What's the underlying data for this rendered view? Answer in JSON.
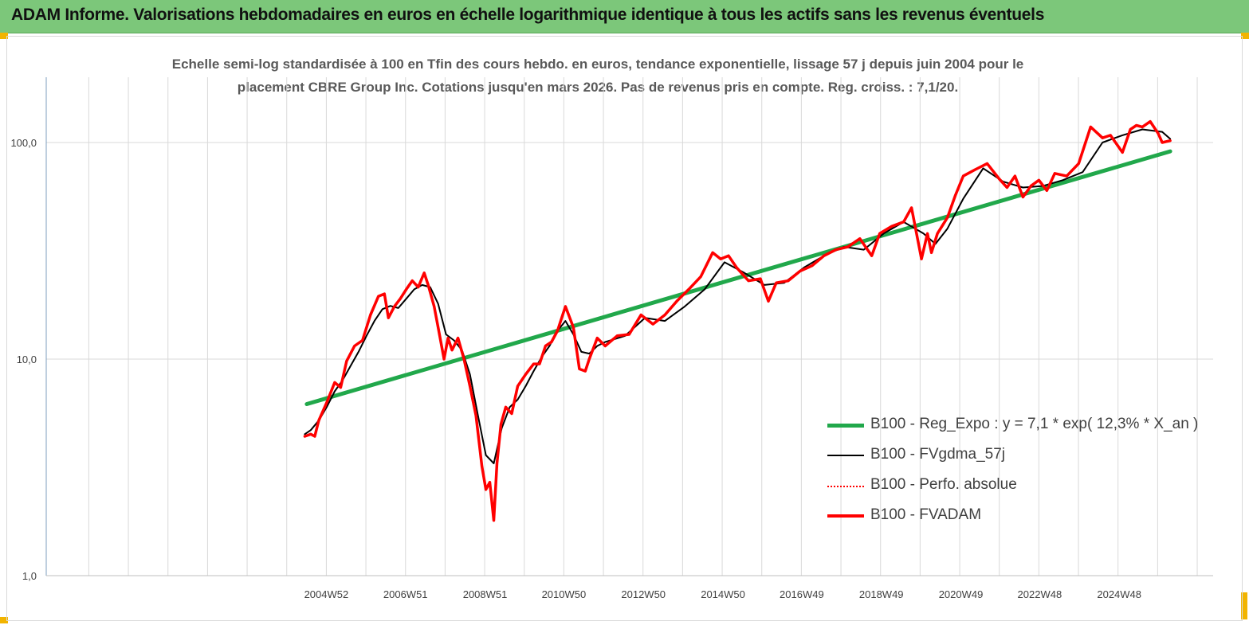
{
  "banner": {
    "title": "ADAM Informe. Valorisations hebdomadaires en euros en échelle logarithmique identique à tous les actifs sans les revenus éventuels"
  },
  "chart_data": {
    "type": "line",
    "title_line1": "Echelle semi-log standardisée à 100 en Tfin des cours hebdo. en euros, tendance exponentielle, lissage 57 j depuis juin 2004 pour le",
    "title_line2": "placement CBRE Group Inc. Cotations jusqu'en mars 2026. Pas de revenus pris en compte. Reg. croiss. : 7,1/20.",
    "y_scale": "log",
    "ylim": [
      1,
      200
    ],
    "y_ticks": [
      1,
      10,
      100
    ],
    "y_tick_labels": [
      "1,0",
      "10,0",
      "100,0"
    ],
    "x_tick_labels": [
      "2004W52",
      "2006W51",
      "2008W51",
      "2010W50",
      "2012W50",
      "2014W50",
      "2016W49",
      "2018W49",
      "2020W49",
      "2022W48",
      "2024W48"
    ],
    "x_tick_years": [
      2004.99,
      2006.98,
      2008.98,
      2010.96,
      2012.96,
      2014.96,
      2016.94,
      2018.94,
      2020.94,
      2022.92,
      2024.92
    ],
    "xlim": [
      1997.95,
      2027.28
    ],
    "grid": true,
    "legend_position": "bottom-right",
    "series": [
      {
        "name": "B100 - Reg_Expo : y = 7,1 * exp( 12,3% *  X_an )",
        "color": "#21a84b",
        "x": [
          2004.5,
          2026.2
        ],
        "y": [
          6.2,
          91
        ]
      },
      {
        "name": "B100 - FVgdma_57j",
        "color": "#000000",
        "x": [
          2004.45,
          2004.6,
          2004.8,
          2005.0,
          2005.2,
          2005.4,
          2005.6,
          2005.8,
          2006.0,
          2006.2,
          2006.4,
          2006.6,
          2006.8,
          2007.0,
          2007.2,
          2007.4,
          2007.6,
          2007.8,
          2008.0,
          2008.2,
          2008.4,
          2008.6,
          2008.8,
          2009.0,
          2009.2,
          2009.4,
          2009.6,
          2009.8,
          2010.0,
          2010.2,
          2010.4,
          2010.6,
          2010.8,
          2011.0,
          2011.2,
          2011.4,
          2011.6,
          2011.8,
          2012.0,
          2012.5,
          2013.0,
          2013.5,
          2014.0,
          2014.5,
          2015.0,
          2015.5,
          2016.0,
          2016.5,
          2017.0,
          2017.5,
          2018.0,
          2018.5,
          2019.0,
          2019.5,
          2020.0,
          2020.3,
          2020.6,
          2021.0,
          2021.5,
          2022.0,
          2022.5,
          2023.0,
          2023.5,
          2024.0,
          2024.5,
          2025.0,
          2025.5,
          2026.0,
          2026.2
        ],
        "y": [
          4.5,
          4.7,
          5.2,
          6.0,
          7.1,
          8.0,
          9.3,
          10.8,
          12.8,
          15.0,
          17.0,
          17.6,
          17.2,
          19.0,
          21.0,
          22.0,
          21.5,
          18.0,
          13.0,
          12.2,
          11.0,
          8.5,
          5.5,
          3.6,
          3.3,
          4.8,
          6.0,
          6.5,
          7.5,
          8.8,
          10.2,
          11.5,
          13.5,
          15.0,
          13.0,
          10.8,
          10.6,
          11.5,
          12.0,
          12.8,
          15.5,
          15.0,
          17.5,
          21.0,
          28.0,
          25.0,
          22.0,
          22.5,
          26.5,
          30.0,
          33.0,
          32.0,
          38.0,
          43.0,
          38.0,
          34.0,
          40.0,
          55.0,
          76.0,
          66.0,
          62.0,
          63.0,
          67.0,
          73.0,
          100.0,
          108.0,
          115.0,
          112.0,
          104.0
        ]
      },
      {
        "name": "B100 - Perfo. absolue",
        "color": "#ff0000",
        "x": [],
        "y": []
      },
      {
        "name": "B100 - FVADAM",
        "color": "#ff0000",
        "x": [
          2004.45,
          2004.6,
          2004.7,
          2004.8,
          2005.0,
          2005.2,
          2005.35,
          2005.5,
          2005.7,
          2005.9,
          2006.1,
          2006.3,
          2006.45,
          2006.55,
          2006.7,
          2006.85,
          2007.0,
          2007.15,
          2007.3,
          2007.45,
          2007.55,
          2007.7,
          2007.8,
          2007.95,
          2008.05,
          2008.15,
          2008.3,
          2008.45,
          2008.6,
          2008.75,
          2008.9,
          2009.0,
          2009.1,
          2009.2,
          2009.28,
          2009.38,
          2009.5,
          2009.65,
          2009.8,
          2010.0,
          2010.2,
          2010.35,
          2010.5,
          2010.65,
          2010.8,
          2011.0,
          2011.2,
          2011.35,
          2011.5,
          2011.6,
          2011.8,
          2012.0,
          2012.3,
          2012.6,
          2012.9,
          2013.2,
          2013.5,
          2013.8,
          2014.1,
          2014.4,
          2014.7,
          2014.9,
          2015.1,
          2015.3,
          2015.6,
          2015.9,
          2016.1,
          2016.3,
          2016.6,
          2016.9,
          2017.2,
          2017.5,
          2017.8,
          2018.1,
          2018.4,
          2018.7,
          2018.9,
          2019.2,
          2019.5,
          2019.7,
          2019.95,
          2020.1,
          2020.2,
          2020.35,
          2020.6,
          2020.8,
          2021.0,
          2021.3,
          2021.6,
          2021.9,
          2022.1,
          2022.3,
          2022.5,
          2022.7,
          2022.9,
          2023.1,
          2023.3,
          2023.6,
          2023.9,
          2024.2,
          2024.5,
          2024.7,
          2025.0,
          2025.2,
          2025.35,
          2025.5,
          2025.7,
          2025.9,
          2026.0,
          2026.2
        ],
        "y": [
          4.4,
          4.5,
          4.4,
          5.2,
          6.3,
          7.8,
          7.4,
          9.8,
          11.5,
          12.2,
          16.0,
          19.5,
          20.0,
          15.5,
          17.5,
          19.0,
          21.0,
          23.0,
          21.5,
          25.0,
          22.0,
          17.5,
          14.0,
          10.0,
          12.5,
          11.0,
          12.5,
          10.0,
          7.5,
          5.5,
          3.2,
          2.5,
          2.7,
          1.8,
          3.3,
          5.0,
          6.0,
          5.6,
          7.5,
          8.5,
          9.5,
          9.5,
          11.5,
          12.0,
          13.5,
          17.5,
          14.0,
          9.0,
          8.8,
          10.0,
          12.5,
          11.5,
          12.8,
          13.0,
          16.0,
          14.5,
          16.0,
          18.5,
          21.0,
          24.0,
          31.0,
          29.0,
          30.0,
          26.5,
          23.0,
          23.5,
          18.5,
          22.5,
          23.0,
          25.5,
          27.0,
          30.0,
          32.0,
          33.0,
          36.0,
          30.0,
          38.0,
          41.0,
          43.0,
          50.0,
          29.0,
          38.0,
          31.0,
          38.0,
          45.0,
          57.0,
          70.0,
          75.0,
          80.0,
          68.0,
          62.0,
          70.0,
          56.0,
          63.0,
          67.0,
          60.0,
          72.0,
          70.0,
          80.0,
          118.0,
          105.0,
          108.0,
          90.0,
          115.0,
          120.0,
          118.0,
          125.0,
          110.0,
          100.0,
          102.0
        ]
      }
    ]
  }
}
